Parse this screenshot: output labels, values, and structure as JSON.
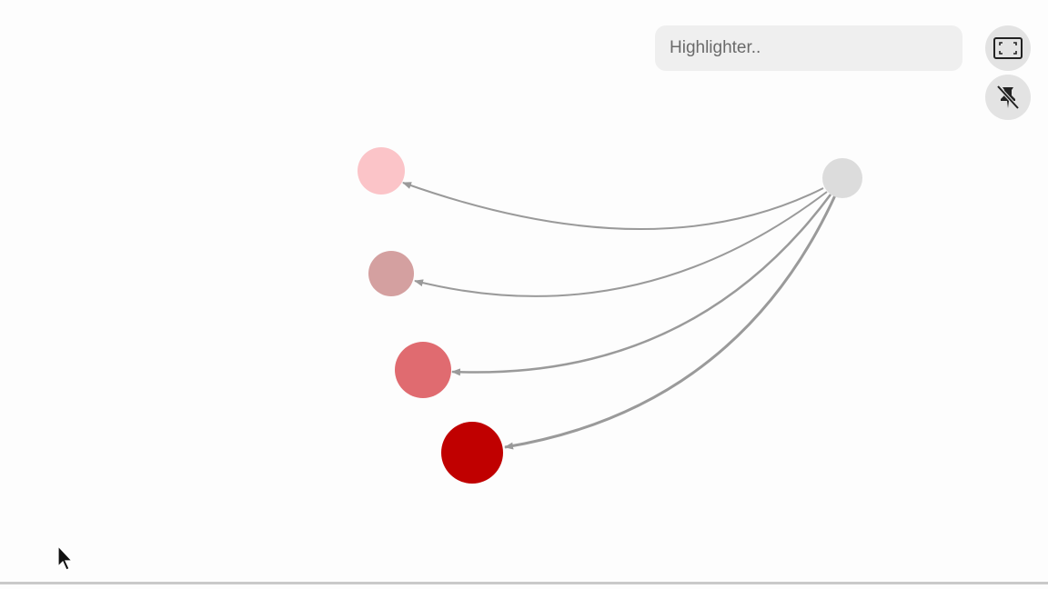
{
  "search": {
    "placeholder": "Highlighter.."
  },
  "controls": {
    "fit_icon": "fit-screen-icon",
    "pin_icon": "unpin-icon"
  },
  "graph": {
    "edge_color": "#9a9a9a",
    "source": {
      "color": "#dcdcdc"
    },
    "targets": [
      {
        "color": "#fbc4c8"
      },
      {
        "color": "#d4a0a0"
      },
      {
        "color": "#e06b70"
      },
      {
        "color": "#c00000"
      }
    ]
  }
}
